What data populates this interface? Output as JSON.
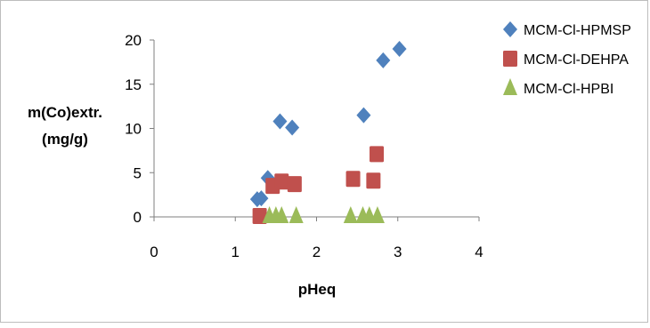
{
  "chart_data": {
    "type": "scatter",
    "title": "",
    "xlabel": "pHeq",
    "ylabel_lines": [
      "m(Co)extr.",
      "(mg/g)"
    ],
    "xlim": [
      0,
      4
    ],
    "ylim": [
      0,
      20
    ],
    "x_ticks": [
      0,
      1,
      2,
      3,
      4
    ],
    "y_ticks": [
      0,
      5,
      10,
      15,
      20
    ],
    "grid": false,
    "legend_position": "right",
    "series": [
      {
        "name": "MCM-Cl-HPMSP",
        "marker": "diamond",
        "color": "#4f81bd",
        "points": [
          [
            1.27,
            2.0
          ],
          [
            1.32,
            2.1
          ],
          [
            1.4,
            4.4
          ],
          [
            1.55,
            10.8
          ],
          [
            1.7,
            10.1
          ],
          [
            2.58,
            11.5
          ],
          [
            2.82,
            17.7
          ],
          [
            3.02,
            19.0
          ]
        ]
      },
      {
        "name": "MCM-Cl-DEHPA",
        "marker": "square",
        "color": "#c0504d",
        "points": [
          [
            1.3,
            0.1
          ],
          [
            1.46,
            3.5
          ],
          [
            1.57,
            4.0
          ],
          [
            1.73,
            3.7
          ],
          [
            2.45,
            4.3
          ],
          [
            2.7,
            4.1
          ],
          [
            2.74,
            7.1
          ]
        ]
      },
      {
        "name": "MCM-Cl-HPBI",
        "marker": "triangle",
        "color": "#9bbb59",
        "points": [
          [
            1.42,
            0.1
          ],
          [
            1.5,
            0.1
          ],
          [
            1.57,
            0.1
          ],
          [
            1.75,
            0.1
          ],
          [
            2.42,
            0.1
          ],
          [
            2.57,
            0.1
          ],
          [
            2.65,
            0.1
          ],
          [
            2.75,
            0.1
          ]
        ]
      }
    ]
  }
}
